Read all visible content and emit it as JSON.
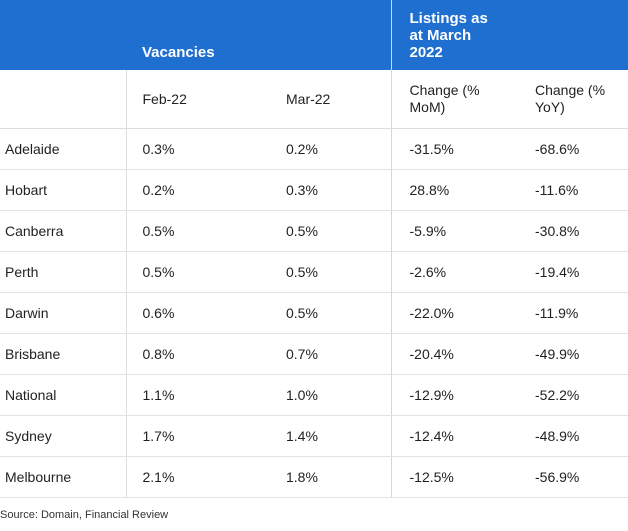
{
  "table": {
    "group_headers": {
      "vacancies": "Vacancies",
      "listings_lines": [
        "Listings as",
        "at March",
        "2022"
      ]
    },
    "columns": {
      "feb": "Feb-22",
      "mar": "Mar-22",
      "mom_lines": [
        "Change (%",
        "MoM)"
      ],
      "yoy_lines": [
        "Change (%",
        "YoY)"
      ]
    },
    "rows": [
      [
        "Adelaide",
        "0.3%",
        "0.2%",
        "-31.5%",
        "-68.6%"
      ],
      [
        "Hobart",
        "0.2%",
        "0.3%",
        "28.8%",
        "-11.6%"
      ],
      [
        "Canberra",
        "0.5%",
        "0.5%",
        "-5.9%",
        "-30.8%"
      ],
      [
        "Perth",
        "0.5%",
        "0.5%",
        "-2.6%",
        "-19.4%"
      ],
      [
        "Darwin",
        "0.6%",
        "0.5%",
        "-22.0%",
        "-11.9%"
      ],
      [
        "Brisbane",
        "0.8%",
        "0.7%",
        "-20.4%",
        "-49.9%"
      ],
      [
        "National",
        "1.1%",
        "1.0%",
        "-12.9%",
        "-52.2%"
      ],
      [
        "Sydney",
        "1.7%",
        "1.4%",
        "-12.4%",
        "-48.9%"
      ],
      [
        "Melbourne",
        "2.1%",
        "1.8%",
        "-12.5%",
        "-56.9%"
      ]
    ]
  },
  "source": "Source: Domain, Financial Review",
  "colors": {
    "header_blue": "#1f6fd1"
  }
}
